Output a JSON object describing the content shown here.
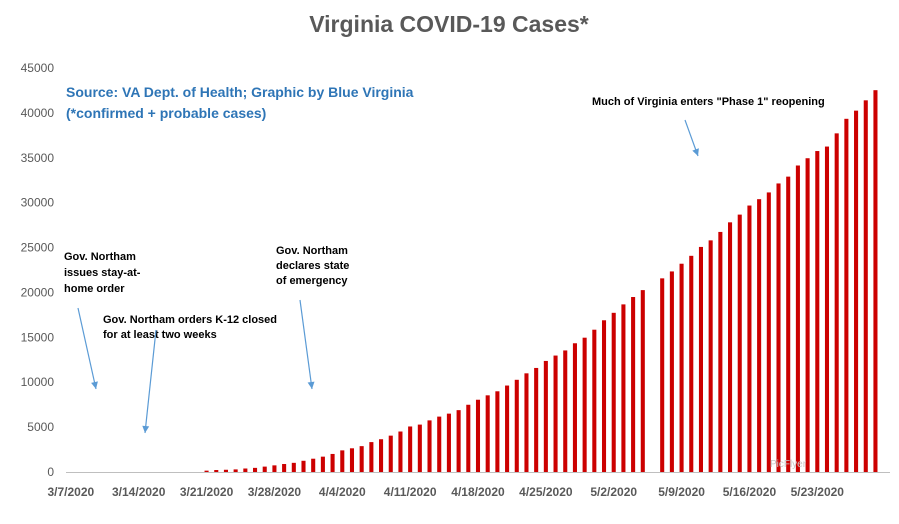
{
  "chart_data": {
    "type": "bar",
    "title": "Virginia COVID-19 Cases*",
    "source_line1": "Source: VA Dept. of Health; Graphic by Blue Virginia",
    "source_line2": "(*confirmed + probable cases)",
    "xlabel": "",
    "ylabel": "",
    "ylim": [
      0,
      45000
    ],
    "yticks": [
      0,
      5000,
      10000,
      15000,
      20000,
      25000,
      30000,
      35000,
      40000,
      45000
    ],
    "x_tick_labels": [
      "3/7/2020",
      "3/14/2020",
      "3/21/2020",
      "3/28/2020",
      "4/4/2020",
      "4/11/2020",
      "4/18/2020",
      "4/25/2020",
      "5/2/2020",
      "5/9/2020",
      "5/16/2020",
      "5/23/2020"
    ],
    "grid": false,
    "bar_color": "#cc0000",
    "categories": [
      "3/7",
      "3/8",
      "3/9",
      "3/10",
      "3/11",
      "3/12",
      "3/13",
      "3/14",
      "3/15",
      "3/16",
      "3/17",
      "3/18",
      "3/19",
      "3/20",
      "3/21",
      "3/22",
      "3/23",
      "3/24",
      "3/25",
      "3/26",
      "3/27",
      "3/28",
      "3/29",
      "3/30",
      "3/31",
      "4/1",
      "4/2",
      "4/3",
      "4/4",
      "4/5",
      "4/6",
      "4/7",
      "4/8",
      "4/9",
      "4/10",
      "4/11",
      "4/12",
      "4/13",
      "4/14",
      "4/15",
      "4/16",
      "4/17",
      "4/18",
      "4/19",
      "4/20",
      "4/21",
      "4/22",
      "4/23",
      "4/24",
      "4/25",
      "4/26",
      "4/27",
      "4/28",
      "4/29",
      "4/30",
      "5/1",
      "5/2",
      "5/3",
      "5/4",
      "5/5",
      "5/6",
      "5/7",
      "5/8",
      "5/9",
      "5/10",
      "5/11",
      "5/12",
      "5/13",
      "5/14",
      "5/15",
      "5/16",
      "5/17",
      "5/18",
      "5/19",
      "5/20",
      "5/21",
      "5/22",
      "5/23",
      "5/24",
      "5/25",
      "5/26",
      "5/27",
      "5/28",
      "5/29",
      "5/30"
    ],
    "values": [
      0,
      0,
      0,
      0,
      0,
      0,
      0,
      0,
      0,
      0,
      0,
      0,
      0,
      0,
      150,
      220,
      250,
      290,
      390,
      460,
      600,
      740,
      890,
      1020,
      1250,
      1480,
      1710,
      2010,
      2410,
      2640,
      2880,
      3330,
      3650,
      4050,
      4510,
      5070,
      5280,
      5750,
      6170,
      6500,
      6890,
      7490,
      8050,
      8540,
      8990,
      9630,
      10270,
      10990,
      11590,
      12370,
      12970,
      13540,
      14340,
      14960,
      15850,
      16900,
      17730,
      18670,
      19490,
      20260,
      null,
      21570,
      22340,
      23200,
      24080,
      25070,
      25800,
      26740,
      27810,
      28670,
      29680,
      30390,
      31140,
      32140,
      32900,
      34140,
      34950,
      35750,
      36250,
      37720,
      39340,
      40250,
      41400,
      42530,
      null
    ]
  },
  "annotations": [
    {
      "lines": [
        "Gov. Northam",
        "issues stay-at-",
        "home order"
      ]
    },
    {
      "lines": [
        "Gov. Northam orders K-12 closed",
        "for at least two weeks"
      ]
    },
    {
      "lines": [
        "Gov. Northam",
        "declares state",
        "of emergency"
      ]
    },
    {
      "lines": [
        "Much of Virginia enters \"Phase 1\" reopening"
      ]
    }
  ],
  "watermark": "PicFlyer"
}
